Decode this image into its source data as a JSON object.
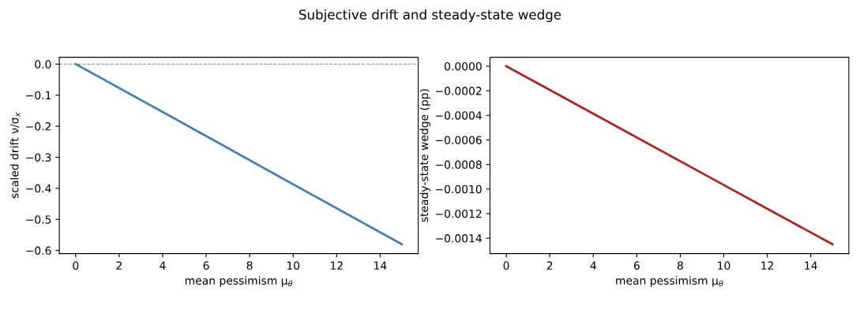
{
  "chart_data": [
    {
      "type": "line",
      "title": "Subjective drift and steady-state wedge",
      "xlabel": "mean pessimism μ$_{θ}$",
      "ylabel": "scaled drift ν/σ$_{x}$",
      "x": [
        0,
        5,
        10,
        15
      ],
      "series": [
        {
          "color": "#4682b4",
          "values": [
            0,
            -0.193,
            -0.387,
            -0.58
          ]
        }
      ],
      "xlim": [
        -0.75,
        15.75
      ],
      "xticks": [
        0,
        2,
        4,
        6,
        8,
        10,
        12,
        14
      ],
      "ylim": [
        -0.61,
        0.022
      ],
      "yticks": [
        {
          "value": -0.6,
          "label": "−0.6"
        },
        {
          "value": -0.5,
          "label": "−0.5"
        },
        {
          "value": -0.4,
          "label": "−0.4"
        },
        {
          "value": -0.3,
          "label": "−0.3"
        },
        {
          "value": -0.2,
          "label": "−0.2"
        },
        {
          "value": -0.1,
          "label": "−0.1"
        },
        {
          "value": 0,
          "label": "0.0"
        }
      ],
      "ref_lines": [
        {
          "axis": "y",
          "value": 0,
          "color": "#808080",
          "line_style": "dashed"
        }
      ],
      "grid": false,
      "legend": false,
      "line_style": "solid",
      "marker": "none"
    },
    {
      "type": "line",
      "xlabel": "mean pessimism μ$_{θ}$",
      "ylabel": "steady-state wedge (pp)",
      "x": [
        0,
        5,
        10,
        15
      ],
      "series": [
        {
          "color": "#b22222",
          "values": [
            0,
            -0.000483,
            -0.000967,
            -0.00145
          ]
        }
      ],
      "xlim": [
        -0.75,
        15.75
      ],
      "xticks": [
        0,
        2,
        4,
        6,
        8,
        10,
        12,
        14
      ],
      "ylim": [
        -0.001525,
        7.25e-05
      ],
      "yticks": [
        {
          "value": -0.0014,
          "label": "−0.0014"
        },
        {
          "value": -0.0012,
          "label": "−0.0012"
        },
        {
          "value": -0.001,
          "label": "−0.0010"
        },
        {
          "value": -0.0008,
          "label": "−0.0008"
        },
        {
          "value": -0.0006,
          "label": "−0.0006"
        },
        {
          "value": -0.0004,
          "label": "−0.0004"
        },
        {
          "value": -0.0002,
          "label": "−0.0002"
        },
        {
          "value": 0,
          "label": "0.0000"
        }
      ],
      "grid": false,
      "legend": false,
      "line_style": "solid",
      "marker": "none"
    }
  ]
}
